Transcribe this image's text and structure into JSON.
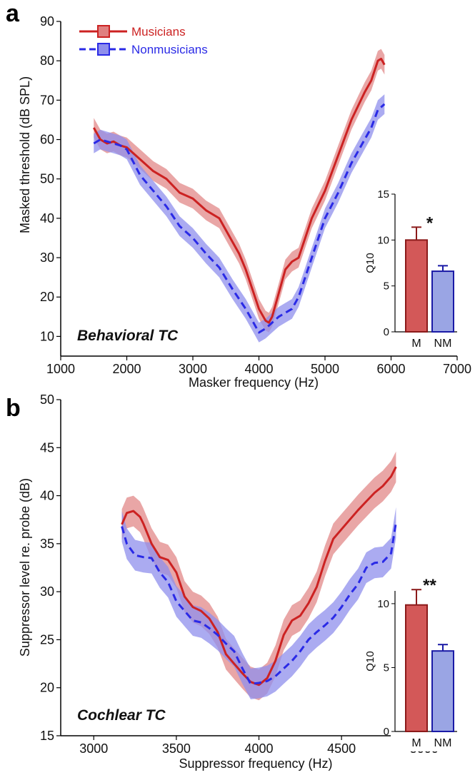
{
  "chart_data": [
    {
      "panel": "a",
      "type": "line",
      "annotation": "Behavioral TC",
      "xlabel": "Masker frequency (Hz)",
      "ylabel": "Masked threshold (dB SPL)",
      "xlim": [
        1000,
        7000
      ],
      "ylim": [
        5,
        90
      ],
      "xticks": [
        "1000",
        "2000",
        "3000",
        "4000",
        "5000",
        "6000",
        "7000"
      ],
      "yticks": [
        "10",
        "20",
        "30",
        "40",
        "50",
        "60",
        "70",
        "80",
        "90"
      ],
      "legend_position": "top-left",
      "series": [
        {
          "name": "Musicians",
          "color": "#cc2222",
          "band_color": "#e08080",
          "style": "solid",
          "x": [
            1500,
            1600,
            1700,
            1800,
            1900,
            2000,
            2200,
            2400,
            2600,
            2800,
            3000,
            3200,
            3400,
            3600,
            3700,
            3800,
            3900,
            4000,
            4100,
            4150,
            4200,
            4300,
            4400,
            4500,
            4600,
            4700,
            4800,
            5000,
            5200,
            5400,
            5600,
            5700,
            5800,
            5850,
            5900
          ],
          "y": [
            63,
            60,
            59,
            59.5,
            58.5,
            58,
            55,
            52,
            50,
            46.5,
            45,
            42,
            40,
            34,
            31,
            27,
            22,
            17,
            14,
            13.5,
            15,
            21,
            27,
            29,
            30,
            35,
            40,
            47,
            56,
            65,
            72,
            75,
            80,
            80.5,
            79
          ],
          "band": 2.5
        },
        {
          "name": "Nonmusicians",
          "color": "#2a2ae6",
          "band_color": "#8f8fec",
          "style": "dashed",
          "x": [
            1500,
            1600,
            1700,
            1800,
            1900,
            2000,
            2200,
            2400,
            2600,
            2800,
            3000,
            3200,
            3400,
            3600,
            3800,
            3900,
            4000,
            4100,
            4200,
            4300,
            4400,
            4500,
            4600,
            4700,
            4800,
            5000,
            5200,
            5400,
            5600,
            5700,
            5800,
            5900
          ],
          "y": [
            59,
            60,
            59.5,
            59,
            58.5,
            57.5,
            51,
            47,
            43,
            38,
            35,
            31,
            27.5,
            22,
            17,
            14,
            11,
            12,
            13.5,
            15,
            16,
            17,
            20,
            25,
            30,
            40,
            46.5,
            54,
            60,
            63,
            67.5,
            69
          ],
          "band": 2.5
        }
      ],
      "inset": {
        "type": "bar",
        "ylabel": "Q10",
        "ylim": [
          0,
          15
        ],
        "yticks": [
          "0",
          "5",
          "10",
          "15"
        ],
        "categories": [
          "M",
          "NM"
        ],
        "values": [
          10.0,
          6.6
        ],
        "errors": [
          1.4,
          0.6
        ],
        "significance": "*"
      }
    },
    {
      "panel": "b",
      "type": "line",
      "annotation": "Cochlear TC",
      "xlabel": "Suppressor frequency (Hz)",
      "ylabel": "Suppressor level re. probe (dB)",
      "xlim": [
        2800,
        5200
      ],
      "ylim": [
        15,
        50
      ],
      "xticks": [
        "3000",
        "3500",
        "4000",
        "4500",
        "5000"
      ],
      "yticks": [
        "15",
        "20",
        "25",
        "30",
        "35",
        "40",
        "45",
        "50"
      ],
      "series": [
        {
          "name": "Musicians",
          "color": "#cc2222",
          "band_color": "#e08080",
          "style": "solid",
          "x": [
            3170,
            3200,
            3240,
            3280,
            3300,
            3350,
            3400,
            3450,
            3500,
            3550,
            3600,
            3650,
            3700,
            3750,
            3800,
            3850,
            3900,
            3950,
            4000,
            4050,
            4100,
            4150,
            4200,
            4250,
            4300,
            4350,
            4400,
            4450,
            4500,
            4550,
            4600,
            4650,
            4700,
            4750,
            4800,
            4830
          ],
          "y": [
            37,
            38.2,
            38.4,
            37.8,
            37.1,
            35,
            33.6,
            33.3,
            32,
            29.5,
            28.4,
            28,
            27.2,
            25.8,
            23.5,
            22.5,
            21.5,
            20.6,
            20.3,
            21,
            22.8,
            25.5,
            27,
            27.5,
            28.8,
            30.5,
            33.2,
            35.5,
            36.5,
            37.5,
            38.5,
            39.4,
            40.3,
            41,
            42,
            43
          ],
          "band": 1.6
        },
        {
          "name": "Nonmusicians",
          "color": "#2a2ae6",
          "band_color": "#8f8fec",
          "style": "dashed",
          "x": [
            3170,
            3200,
            3250,
            3300,
            3350,
            3400,
            3450,
            3500,
            3550,
            3600,
            3650,
            3700,
            3750,
            3800,
            3850,
            3900,
            3950,
            4000,
            4050,
            4100,
            4150,
            4200,
            4250,
            4300,
            4350,
            4400,
            4450,
            4500,
            4550,
            4600,
            4650,
            4700,
            4750,
            4800,
            4830
          ],
          "y": [
            36.8,
            35,
            33.8,
            33.6,
            33.5,
            32,
            31,
            29,
            28,
            27,
            26.8,
            26.2,
            25.5,
            24.6,
            23.8,
            22,
            20.4,
            20.5,
            20.7,
            21.2,
            22,
            22.8,
            23.8,
            25,
            25.8,
            26.5,
            27.3,
            28.4,
            29.7,
            30.8,
            32.5,
            33,
            33.1,
            34,
            37.2
          ],
          "band": 1.6
        }
      ],
      "inset": {
        "type": "bar",
        "ylabel": "Q10",
        "ylim": [
          0,
          11
        ],
        "yticks": [
          "0",
          "5",
          "10"
        ],
        "categories": [
          "M",
          "NM"
        ],
        "values": [
          9.9,
          6.3
        ],
        "errors": [
          1.2,
          0.5
        ],
        "significance": "**"
      }
    }
  ]
}
